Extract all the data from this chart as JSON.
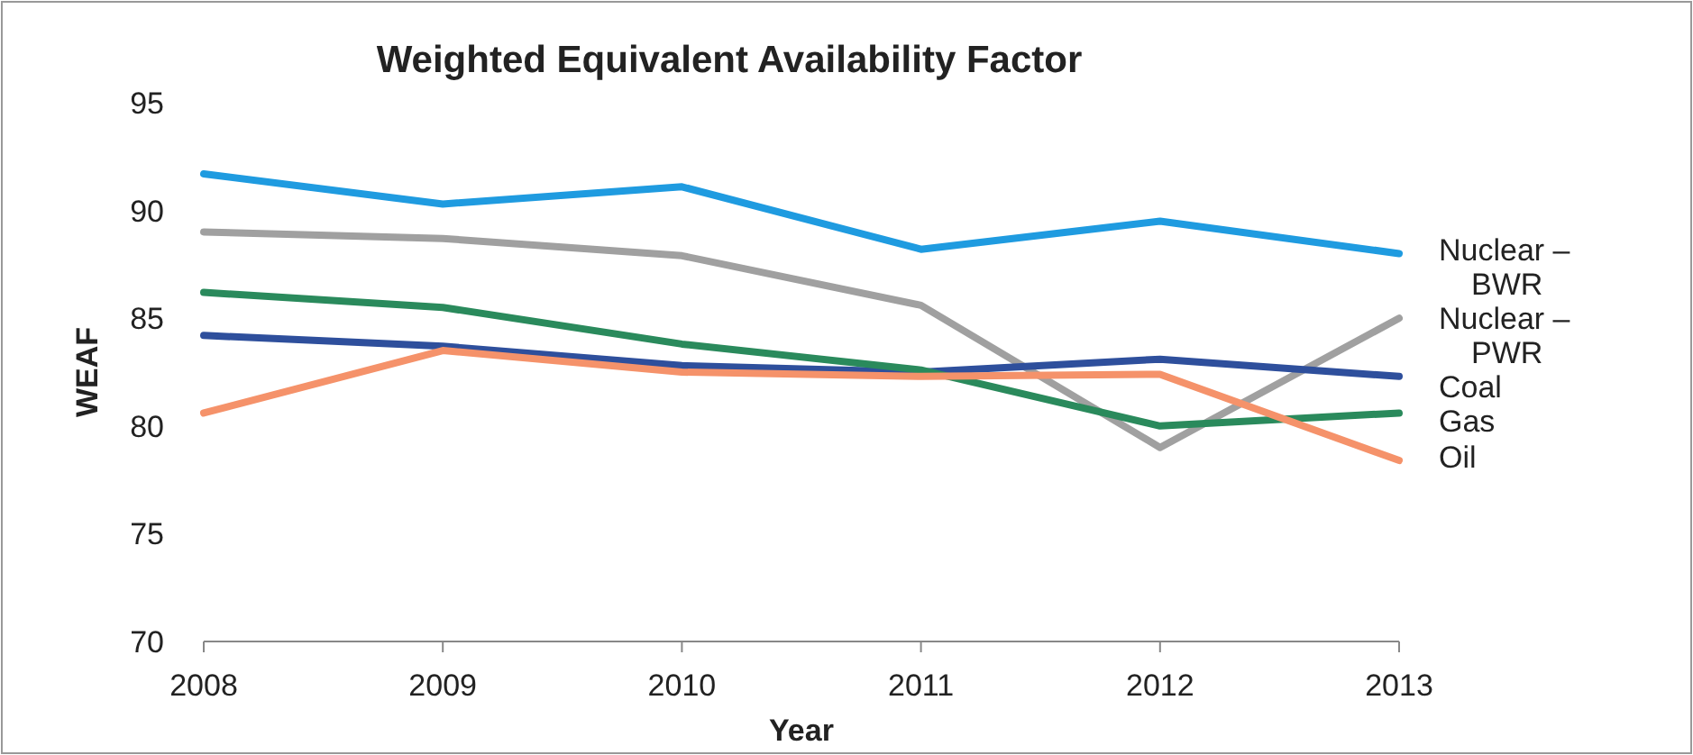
{
  "chart_data": {
    "type": "line",
    "title": "Weighted Equivalent Availability Factor",
    "xlabel": "Year",
    "ylabel": "WEAF",
    "x": [
      2008,
      2009,
      2010,
      2011,
      2012,
      2013
    ],
    "xlim": [
      2008,
      2013
    ],
    "xticks": [
      2008,
      2009,
      2010,
      2011,
      2012,
      2013
    ],
    "ylim": [
      70,
      95
    ],
    "yticks": [
      70,
      75,
      80,
      85,
      90,
      95
    ],
    "grid": false,
    "marker": "none",
    "line_style": "solid",
    "series": [
      {
        "name": "Nuclear – BWR",
        "color": "#1f9be0",
        "values": [
          91.7,
          90.3,
          91.1,
          88.2,
          89.5,
          88.0
        ]
      },
      {
        "name": "Nuclear – PWR",
        "color": "#a0a0a0",
        "values": [
          89.0,
          88.7,
          87.9,
          85.6,
          79.0,
          85.0
        ]
      },
      {
        "name": "Coal",
        "color": "#2e4f9c",
        "values": [
          84.2,
          83.7,
          82.8,
          82.5,
          83.1,
          82.3
        ]
      },
      {
        "name": "Gas",
        "color": "#2a8a5c",
        "values": [
          86.2,
          85.5,
          83.8,
          82.6,
          80.0,
          80.6
        ]
      },
      {
        "name": "Oil",
        "color": "#f5926a",
        "values": [
          80.6,
          83.5,
          82.5,
          82.3,
          82.4,
          78.4
        ]
      }
    ]
  }
}
